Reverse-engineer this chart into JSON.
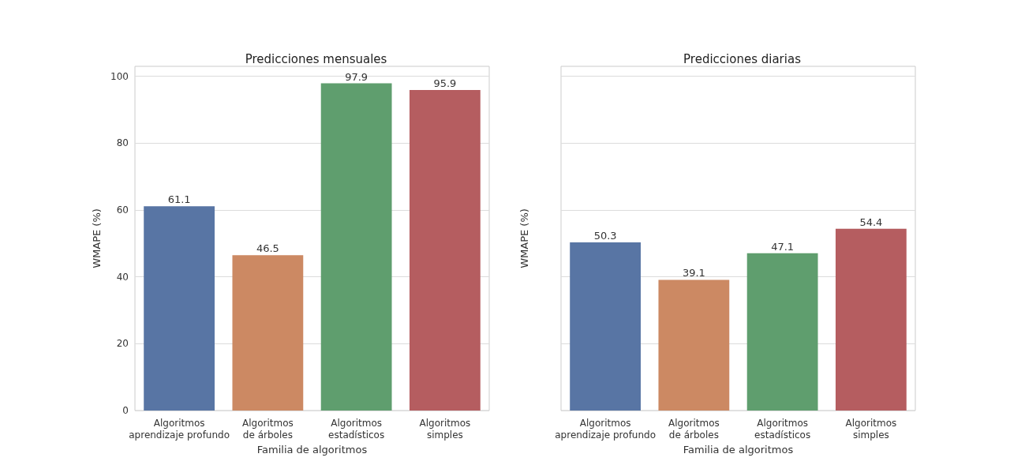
{
  "chart_data": [
    {
      "type": "bar",
      "title": "Predicciones mensuales",
      "xlabel": "Familia de algoritmos",
      "ylabel": "WMAPE (%)",
      "categories": [
        "Algoritmos\naprendizaje profundo",
        "Algoritmos\nde árboles",
        "Algoritmos\nestadísticos",
        "Algoritmos\nsimples"
      ],
      "values": [
        61.1,
        46.5,
        97.9,
        95.9
      ],
      "colors": [
        "#5875a4",
        "#cc8963",
        "#5f9e6e",
        "#b55d60"
      ],
      "ylim": [
        0,
        103
      ],
      "yticks": [
        0,
        20,
        40,
        60,
        80,
        100
      ],
      "grid": "y",
      "data_labels": true
    },
    {
      "type": "bar",
      "title": "Predicciones diarias",
      "xlabel": "Familia de algoritmos",
      "ylabel": "WMAPE (%)",
      "categories": [
        "Algoritmos\naprendizaje profundo",
        "Algoritmos\nde árboles",
        "Algoritmos\nestadísticos",
        "Algoritmos\nsimples"
      ],
      "values": [
        50.3,
        39.1,
        47.1,
        54.4
      ],
      "colors": [
        "#5875a4",
        "#cc8963",
        "#5f9e6e",
        "#b55d60"
      ],
      "ylim": [
        0,
        103
      ],
      "yticks": [
        0,
        20,
        40,
        60,
        80,
        100
      ],
      "grid": "y",
      "data_labels": true,
      "tick_labels": "x"
    }
  ]
}
